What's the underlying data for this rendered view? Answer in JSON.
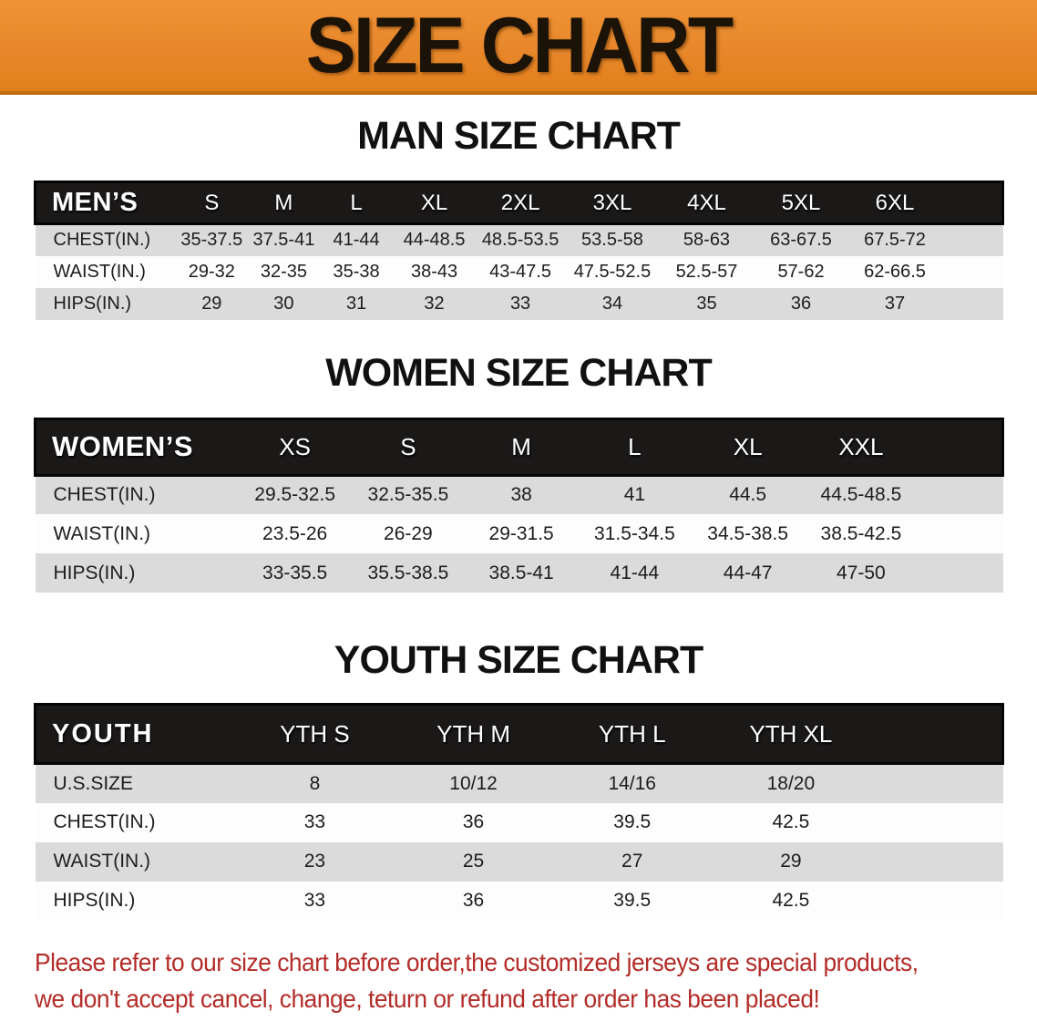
{
  "banner": {
    "title": "SIZE CHART",
    "bg_color": "#E8872B",
    "border_color": "#C06C12"
  },
  "sections": [
    {
      "key": "men",
      "heading": "MAN SIZE CHART",
      "group_label": "MEN’S",
      "sizes": [
        "S",
        "M",
        "L",
        "XL",
        "2XL",
        "3XL",
        "4XL",
        "5XL",
        "6XL"
      ],
      "rows": [
        {
          "label": "CHEST(IN.)",
          "values": [
            "35-37.5",
            "37.5-41",
            "41-44",
            "44-48.5",
            "48.5-53.5",
            "53.5-58",
            "58-63",
            "63-67.5",
            "67.5-72"
          ]
        },
        {
          "label": "WAIST(IN.)",
          "values": [
            "29-32",
            "32-35",
            "35-38",
            "38-43",
            "43-47.5",
            "47.5-52.5",
            "52.5-57",
            "57-62",
            "62-66.5"
          ]
        },
        {
          "label": "HIPS(IN.)",
          "values": [
            "29",
            "30",
            "31",
            "32",
            "33",
            "34",
            "35",
            "36",
            "37"
          ]
        }
      ]
    },
    {
      "key": "women",
      "heading": "WOMEN SIZE CHART",
      "group_label": "WOMEN’S",
      "sizes": [
        "XS",
        "S",
        "M",
        "L",
        "XL",
        "XXL"
      ],
      "rows": [
        {
          "label": "CHEST(IN.)",
          "values": [
            "29.5-32.5",
            "32.5-35.5",
            "38",
            "41",
            "44.5",
            "44.5-48.5"
          ]
        },
        {
          "label": "WAIST(IN.)",
          "values": [
            "23.5-26",
            "26-29",
            "29-31.5",
            "31.5-34.5",
            "34.5-38.5",
            "38.5-42.5"
          ]
        },
        {
          "label": "HIPS(IN.)",
          "values": [
            "33-35.5",
            "35.5-38.5",
            "38.5-41",
            "41-44",
            "44-47",
            "47-50"
          ]
        }
      ]
    },
    {
      "key": "youth",
      "heading": "YOUTH SIZE CHART",
      "group_label": "YOUTH",
      "sizes": [
        "YTH S",
        "YTH M",
        "YTH L",
        "YTH XL"
      ],
      "rows": [
        {
          "label": "U.S.SIZE",
          "values": [
            "8",
            "10/12",
            "14/16",
            "18/20"
          ]
        },
        {
          "label": "CHEST(IN.)",
          "values": [
            "33",
            "36",
            "39.5",
            "42.5"
          ]
        },
        {
          "label": "WAIST(IN.)",
          "values": [
            "23",
            "25",
            "27",
            "29"
          ]
        },
        {
          "label": "HIPS(IN.)",
          "values": [
            "33",
            "36",
            "39.5",
            "42.5"
          ]
        }
      ]
    }
  ],
  "table_colors": {
    "header_bg": "#1B1818",
    "row_gray": "#DBDBDB",
    "row_white": "#FDFDFD"
  },
  "disclaimer": {
    "color": "#B32C28",
    "lines": [
      "Please refer to our size chart before order,the customized jerseys are special products,",
      "we don't accept cancel, change, teturn or refund after order has been placed!"
    ]
  }
}
